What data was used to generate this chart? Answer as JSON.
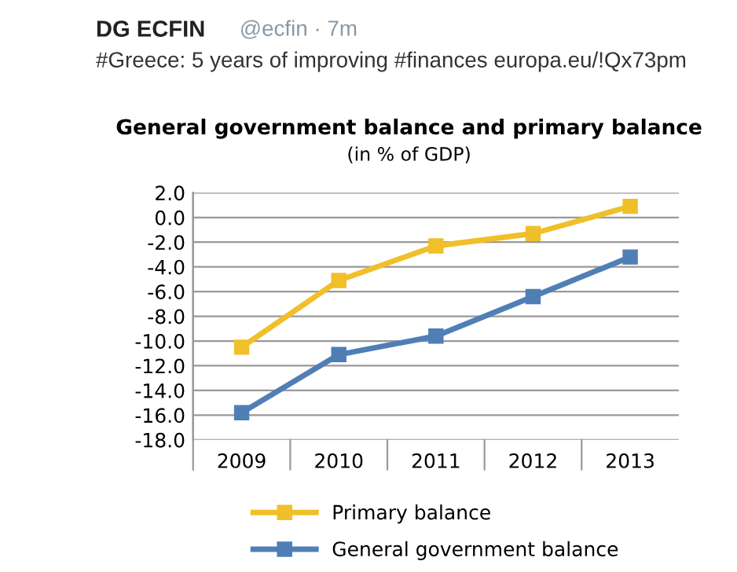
{
  "chart_data": {
    "type": "line",
    "title": "General government balance and primary balance",
    "subtitle": "(in % of GDP)",
    "annotations": [
      "DG ECFIN",
      "@ecfin · 7m",
      "#Greece: 5 years of improving #finances europa.eu/!Qx73pm"
    ],
    "categories": [
      "2009",
      "2010",
      "2011",
      "2012",
      "2013"
    ],
    "series": [
      {
        "name": "Primary balance",
        "color": "#f0bf2a",
        "values": [
          -10.5,
          -5.1,
          -2.3,
          -1.3,
          0.9
        ]
      },
      {
        "name": "General government balance",
        "color": "#4f7fb5",
        "values": [
          -15.8,
          -11.1,
          -9.6,
          -6.4,
          -3.2
        ]
      }
    ],
    "ylim": [
      -18,
      2
    ],
    "yticks": [
      {
        "value": 2,
        "label": "2.0"
      },
      {
        "value": 0,
        "label": "0.0"
      },
      {
        "value": -2,
        "label": "-2.0"
      },
      {
        "value": -4,
        "label": "-4.0"
      },
      {
        "value": -6,
        "label": "-6.0"
      },
      {
        "value": -8,
        "label": "-8.0"
      },
      {
        "value": -10,
        "label": "-10.0"
      },
      {
        "value": -12,
        "label": "-12.0"
      },
      {
        "value": -14,
        "label": "-14.0"
      },
      {
        "value": -16,
        "label": "-16.0"
      },
      {
        "value": -18,
        "label": "-18.0"
      }
    ],
    "grid": "y",
    "legend": "bottom",
    "marker": "square",
    "line_style": "solid"
  }
}
